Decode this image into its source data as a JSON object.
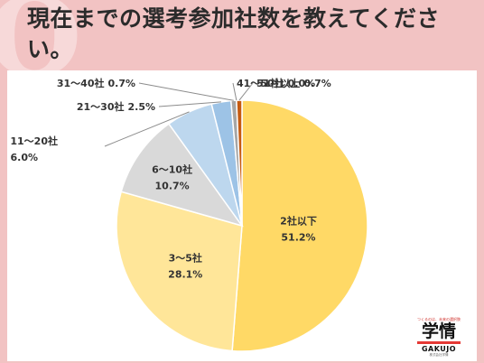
{
  "title": "現在までの選考参加社数を教えてください。",
  "chart_data": {
    "type": "pie",
    "slices": [
      {
        "label": "2社以下",
        "value": 51.2,
        "value_text": "51.2%",
        "color": "#ffd966"
      },
      {
        "label": "3〜5社",
        "value": 28.1,
        "value_text": "28.1%",
        "color": "#ffe699"
      },
      {
        "label": "6〜10社",
        "value": 10.7,
        "value_text": "10.7%",
        "color": "#d9d9d9"
      },
      {
        "label": "11〜20社",
        "value": 6.0,
        "value_text": "6.0%",
        "color": "#bdd7ee"
      },
      {
        "label": "21〜30社",
        "value": 2.5,
        "value_text": "2.5%",
        "color": "#9dc3e6"
      },
      {
        "label": "31〜40社",
        "value": 0.7,
        "value_text": "0.7%",
        "color": "#a6a6a6"
      },
      {
        "label": "41〜50社",
        "value": 0.0,
        "value_text": "0.0%",
        "color": "#8faadc"
      },
      {
        "label": "51社以上",
        "value": 0.7,
        "value_text": "0.7%",
        "color": "#c55a11"
      }
    ]
  },
  "logo": {
    "tagline": "つくるのは、未来の選択肢",
    "mark": "学情",
    "name": "GAKUJO",
    "sub": "株式会社学情"
  }
}
